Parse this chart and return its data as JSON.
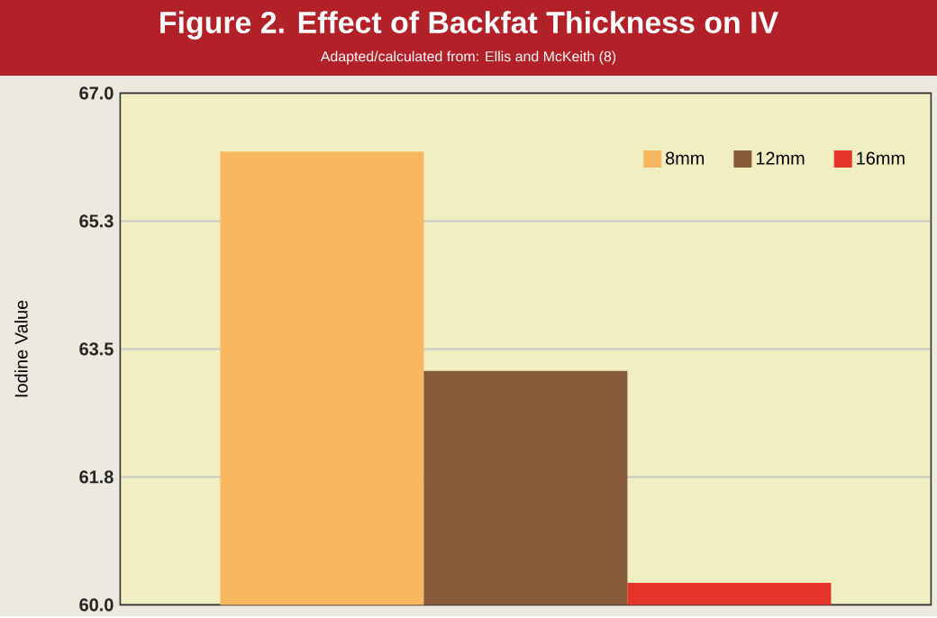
{
  "chart_data": {
    "type": "bar",
    "title": "Figure 2.  Effect of Backfat Thickness on IV",
    "subtitle": "Adapted/calculated from: Ellis and McKeith (8)",
    "ylabel": "Iodine Value",
    "categories": [
      null
    ],
    "series": [
      {
        "name": "8mm",
        "color": "#f9b75f",
        "values": [
          66.2
        ]
      },
      {
        "name": "12mm",
        "color": "#875a39",
        "values": [
          63.2
        ]
      },
      {
        "name": "16mm",
        "color": "#e5352a",
        "values": [
          60.3
        ]
      }
    ],
    "ylim": [
      60,
      67
    ],
    "yticks": [
      {
        "value": 60,
        "label": "60.0"
      },
      {
        "value": 61.75,
        "label": "61.8"
      },
      {
        "value": 63.5,
        "label": "63.5"
      },
      {
        "value": 65.25,
        "label": "65.3"
      },
      {
        "value": 67,
        "label": "67.0"
      }
    ],
    "grid": "y",
    "legend": "top right",
    "tick_labels": "y"
  }
}
